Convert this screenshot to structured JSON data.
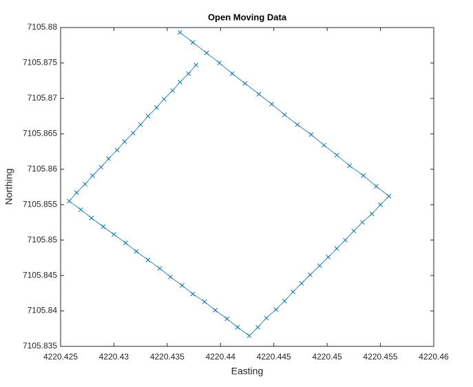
{
  "chart_data": {
    "type": "line",
    "title": "Open Moving Data",
    "x_label": "Easting",
    "y_label": "Northing",
    "xlim": [
      4220.425,
      4220.46
    ],
    "xticks": [
      4220.425,
      4220.43,
      4220.435,
      4220.44,
      4220.445,
      4220.45,
      4220.455,
      4220.46
    ],
    "ylim": [
      7105.835,
      7105.88
    ],
    "yticks": [
      7105.835,
      7105.84,
      7105.845,
      7105.85,
      7105.855,
      7105.86,
      7105.865,
      7105.87,
      7105.875,
      7105.88
    ],
    "grid": false,
    "box": true,
    "series": [
      {
        "color": "#0072bd",
        "marker": "x",
        "x": [
          4220.4362,
          4220.4374,
          4220.4387,
          4220.4399,
          4220.4411,
          4220.4423,
          4220.4436,
          4220.4448,
          4220.446,
          4220.4472,
          4220.4485,
          4220.4497,
          4220.4509,
          4220.4521,
          4220.4534,
          4220.4546,
          4220.4558,
          4220.455,
          4220.4542,
          4220.4533,
          4220.4525,
          4220.4517,
          4220.4509,
          4220.4501,
          4220.4493,
          4220.4484,
          4220.4476,
          4220.4468,
          4220.446,
          4220.4452,
          4220.4443,
          4220.4435,
          4220.4427,
          4220.4416,
          4220.4406,
          4220.4395,
          4220.4385,
          4220.4374,
          4220.4364,
          4220.4353,
          4220.4343,
          4220.4332,
          4220.4321,
          4220.4311,
          4220.43,
          4220.429,
          4220.4279,
          4220.4269,
          4220.4258,
          4220.4265,
          4220.4273,
          4220.428,
          4220.4288,
          4220.4295,
          4220.4303,
          4220.431,
          4220.4318,
          4220.4325,
          4220.4332,
          4220.434,
          4220.4347,
          4220.4355,
          4220.4362,
          4220.437,
          4220.4377
        ],
        "values": [
          7105.8793,
          7105.8779,
          7105.8764,
          7105.875,
          7105.8735,
          7105.8721,
          7105.8706,
          7105.8692,
          7105.8677,
          7105.8663,
          7105.8649,
          7105.8634,
          7105.862,
          7105.8605,
          7105.8591,
          7105.8576,
          7105.8562,
          7105.855,
          7105.8537,
          7105.8525,
          7105.8513,
          7105.85,
          7105.8488,
          7105.8476,
          7105.8464,
          7105.8451,
          7105.8439,
          7105.8427,
          7105.8414,
          7105.8402,
          7105.839,
          7105.8377,
          7105.8365,
          7105.8377,
          7105.8389,
          7105.8401,
          7105.8413,
          7105.8424,
          7105.8436,
          7105.8448,
          7105.846,
          7105.8472,
          7105.8484,
          7105.8496,
          7105.8508,
          7105.8519,
          7105.8531,
          7105.8543,
          7105.8555,
          7105.8567,
          7105.8579,
          7105.8591,
          7105.8603,
          7105.8615,
          7105.8627,
          7105.8639,
          7105.8651,
          7105.8663,
          7105.8675,
          7105.8687,
          7105.8699,
          7105.8711,
          7105.8723,
          7105.8735,
          7105.8747
        ]
      }
    ]
  }
}
